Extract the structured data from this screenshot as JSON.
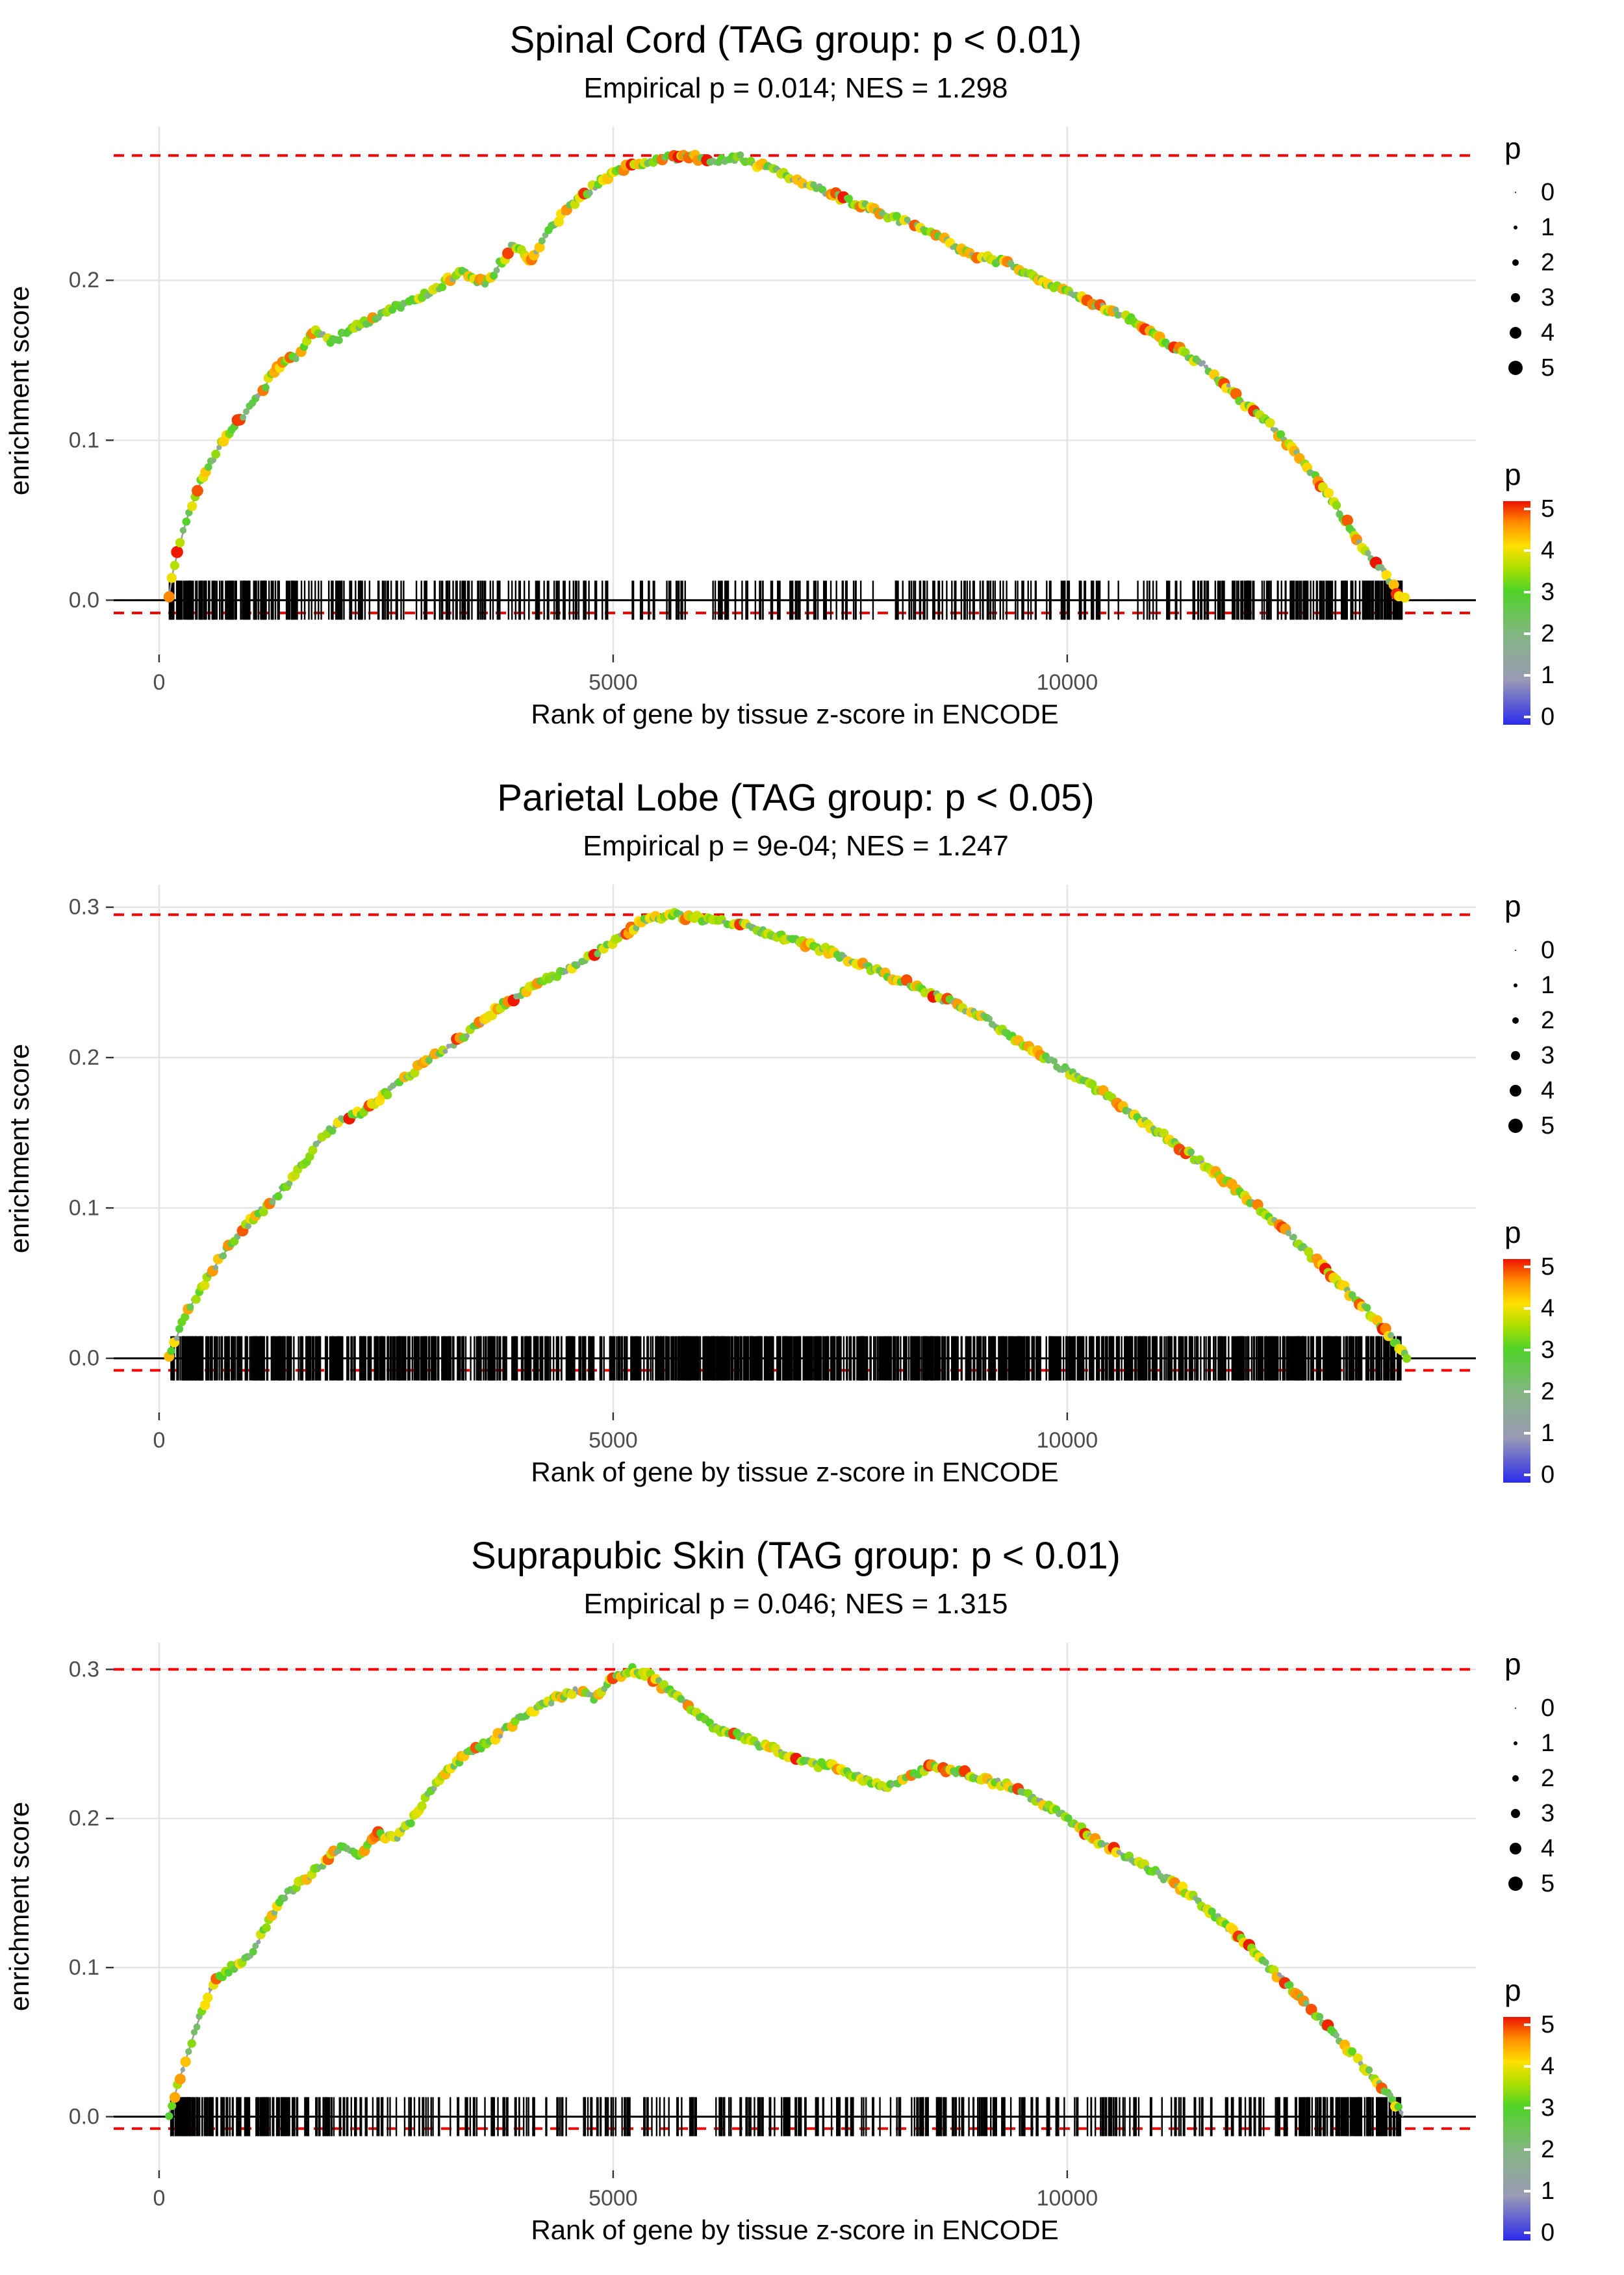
{
  "page": {
    "background": "#ffffff"
  },
  "style": {
    "grid_color": "#e4e4e4",
    "dash_color": "#fb0000",
    "zero_line_color": "#000000",
    "axis_text_color": "#4d4d4d",
    "axis_title_color": "#000000",
    "curve_line_color": "#9b9b9b",
    "rug_color": "#000000"
  },
  "legend": {
    "size_title": "p",
    "size_labels": [
      "0",
      "1",
      "2",
      "3",
      "4",
      "5"
    ],
    "color_title": "p",
    "color_labels": [
      "5",
      "4",
      "3",
      "2",
      "1",
      "0"
    ],
    "color_scale_anchors": [
      [
        0,
        "#2b2bec"
      ],
      [
        1,
        "#9a9ab5"
      ],
      [
        2,
        "#84b583"
      ],
      [
        3,
        "#50d327"
      ],
      [
        3.5,
        "#aadf00"
      ],
      [
        4,
        "#ffe000"
      ],
      [
        4.5,
        "#ff9000"
      ],
      [
        5,
        "#ee1100"
      ]
    ]
  },
  "chart_data": [
    {
      "type": "line",
      "title": "Spinal Cord (TAG group: p < 0.01)",
      "subtitle": "Empirical p = 0.014; NES = 1.298",
      "group_label": "TAG group: p < 0.01",
      "empirical_p": "0.014",
      "nes": "1.298",
      "xlabel": "Rank of gene by tissue z-score in ENCODE",
      "ylabel": "enrichment score",
      "xticks": [
        0,
        5000,
        10000
      ],
      "yticks": [
        0.0,
        0.1,
        0.2
      ],
      "xlim": [
        -500,
        14500
      ],
      "ylim": [
        -0.034,
        0.296
      ],
      "es_max_dash": 0.278,
      "zero_dash": -0.008,
      "zero_line": 0.0,
      "curve": [
        [
          100,
          0
        ],
        [
          160,
          0.02
        ],
        [
          300,
          0.05
        ],
        [
          500,
          0.08
        ],
        [
          700,
          0.1
        ],
        [
          1000,
          0.12
        ],
        [
          1300,
          0.145
        ],
        [
          1500,
          0.152
        ],
        [
          1700,
          0.168
        ],
        [
          1900,
          0.162
        ],
        [
          2100,
          0.168
        ],
        [
          2400,
          0.178
        ],
        [
          2700,
          0.185
        ],
        [
          3000,
          0.192
        ],
        [
          3300,
          0.205
        ],
        [
          3600,
          0.198
        ],
        [
          3900,
          0.222
        ],
        [
          4100,
          0.213
        ],
        [
          4300,
          0.232
        ],
        [
          4600,
          0.25
        ],
        [
          4900,
          0.263
        ],
        [
          5200,
          0.272
        ],
        [
          5500,
          0.276
        ],
        [
          5800,
          0.277
        ],
        [
          6100,
          0.275
        ],
        [
          6400,
          0.277
        ],
        [
          6700,
          0.27
        ],
        [
          7000,
          0.264
        ],
        [
          7300,
          0.256
        ],
        [
          7600,
          0.25
        ],
        [
          7900,
          0.243
        ],
        [
          8200,
          0.237
        ],
        [
          8500,
          0.231
        ],
        [
          8800,
          0.219
        ],
        [
          9100,
          0.214
        ],
        [
          9400,
          0.21
        ],
        [
          9700,
          0.2
        ],
        [
          10000,
          0.194
        ],
        [
          10300,
          0.184
        ],
        [
          10600,
          0.179
        ],
        [
          10900,
          0.168
        ],
        [
          11200,
          0.158
        ],
        [
          11500,
          0.147
        ],
        [
          11800,
          0.131
        ],
        [
          12100,
          0.116
        ],
        [
          12400,
          0.1
        ],
        [
          12700,
          0.08
        ],
        [
          13000,
          0.055
        ],
        [
          13300,
          0.03
        ],
        [
          13500,
          0.016
        ],
        [
          13650,
          0.004
        ],
        [
          13720,
          0
        ]
      ],
      "rug": {
        "count": 520,
        "seed": 42,
        "half_height": 30,
        "clusters": true
      },
      "dots": {
        "step": 30,
        "seed": 911
      }
    },
    {
      "type": "line",
      "title": "Parietal Lobe (TAG group: p < 0.05)",
      "subtitle": "Empirical p = 9e-04; NES = 1.247",
      "group_label": "TAG group: p < 0.05",
      "empirical_p": "9e-04",
      "nes": "1.247",
      "xlabel": "Rank of gene by tissue z-score in ENCODE",
      "ylabel": "enrichment score",
      "xticks": [
        0,
        5000,
        10000
      ],
      "yticks": [
        0.0,
        0.1,
        0.2,
        0.3
      ],
      "xlim": [
        -500,
        14500
      ],
      "ylim": [
        -0.036,
        0.315
      ],
      "es_max_dash": 0.295,
      "zero_dash": -0.008,
      "zero_line": 0.0,
      "curve": [
        [
          100,
          0
        ],
        [
          300,
          0.03
        ],
        [
          600,
          0.06
        ],
        [
          900,
          0.085
        ],
        [
          1200,
          0.102
        ],
        [
          1500,
          0.122
        ],
        [
          1800,
          0.147
        ],
        [
          2000,
          0.158
        ],
        [
          2300,
          0.166
        ],
        [
          2600,
          0.181
        ],
        [
          2900,
          0.196
        ],
        [
          3200,
          0.207
        ],
        [
          3500,
          0.221
        ],
        [
          3800,
          0.236
        ],
        [
          4100,
          0.246
        ],
        [
          4400,
          0.256
        ],
        [
          4700,
          0.266
        ],
        [
          5000,
          0.276
        ],
        [
          5300,
          0.29
        ],
        [
          5600,
          0.295
        ],
        [
          5900,
          0.293
        ],
        [
          6200,
          0.29
        ],
        [
          6500,
          0.287
        ],
        [
          6800,
          0.281
        ],
        [
          7100,
          0.276
        ],
        [
          7400,
          0.27
        ],
        [
          7700,
          0.262
        ],
        [
          8000,
          0.255
        ],
        [
          8300,
          0.248
        ],
        [
          8600,
          0.24
        ],
        [
          8900,
          0.232
        ],
        [
          9200,
          0.222
        ],
        [
          9500,
          0.21
        ],
        [
          9800,
          0.198
        ],
        [
          10100,
          0.188
        ],
        [
          10400,
          0.176
        ],
        [
          10700,
          0.163
        ],
        [
          11000,
          0.151
        ],
        [
          11300,
          0.138
        ],
        [
          11600,
          0.125
        ],
        [
          11900,
          0.11
        ],
        [
          12200,
          0.095
        ],
        [
          12500,
          0.079
        ],
        [
          12800,
          0.062
        ],
        [
          13100,
          0.044
        ],
        [
          13400,
          0.026
        ],
        [
          13650,
          0.008
        ],
        [
          13760,
          0
        ]
      ],
      "rug": {
        "count": 1300,
        "seed": 77,
        "half_height": 34,
        "clusters": false
      },
      "dots": {
        "step": 30,
        "seed": 555
      }
    },
    {
      "type": "line",
      "title": "Suprapubic Skin (TAG group: p < 0.01)",
      "subtitle": "Empirical p = 0.046; NES = 1.315",
      "group_label": "TAG group: p < 0.01",
      "empirical_p": "0.046",
      "nes": "1.315",
      "xlabel": "Rank of gene by tissue z-score in ENCODE",
      "ylabel": "enrichment score",
      "xticks": [
        0,
        5000,
        10000
      ],
      "yticks": [
        0.0,
        0.1,
        0.2,
        0.3
      ],
      "xlim": [
        -500,
        14500
      ],
      "ylim": [
        -0.036,
        0.318
      ],
      "es_max_dash": 0.3,
      "zero_dash": -0.008,
      "zero_line": 0.0,
      "curve": [
        [
          100,
          0
        ],
        [
          250,
          0.03
        ],
        [
          420,
          0.062
        ],
        [
          600,
          0.09
        ],
        [
          800,
          0.1
        ],
        [
          1000,
          0.107
        ],
        [
          1200,
          0.13
        ],
        [
          1400,
          0.149
        ],
        [
          1600,
          0.159
        ],
        [
          1800,
          0.169
        ],
        [
          2000,
          0.181
        ],
        [
          2200,
          0.176
        ],
        [
          2400,
          0.19
        ],
        [
          2600,
          0.186
        ],
        [
          2800,
          0.2
        ],
        [
          3000,
          0.219
        ],
        [
          3200,
          0.234
        ],
        [
          3400,
          0.244
        ],
        [
          3600,
          0.25
        ],
        [
          3800,
          0.259
        ],
        [
          4000,
          0.269
        ],
        [
          4200,
          0.275
        ],
        [
          4400,
          0.281
        ],
        [
          4600,
          0.286
        ],
        [
          4800,
          0.281
        ],
        [
          5000,
          0.294
        ],
        [
          5200,
          0.3
        ],
        [
          5400,
          0.296
        ],
        [
          5600,
          0.286
        ],
        [
          5800,
          0.276
        ],
        [
          6000,
          0.266
        ],
        [
          6200,
          0.258
        ],
        [
          6400,
          0.255
        ],
        [
          6600,
          0.25
        ],
        [
          6800,
          0.246
        ],
        [
          7000,
          0.24
        ],
        [
          7200,
          0.236
        ],
        [
          7400,
          0.236
        ],
        [
          7600,
          0.23
        ],
        [
          7800,
          0.226
        ],
        [
          8000,
          0.221
        ],
        [
          8200,
          0.226
        ],
        [
          8500,
          0.235
        ],
        [
          8800,
          0.231
        ],
        [
          9100,
          0.226
        ],
        [
          9400,
          0.221
        ],
        [
          9700,
          0.211
        ],
        [
          10000,
          0.2
        ],
        [
          10300,
          0.186
        ],
        [
          10600,
          0.176
        ],
        [
          10900,
          0.166
        ],
        [
          11200,
          0.156
        ],
        [
          11500,
          0.141
        ],
        [
          11800,
          0.126
        ],
        [
          12100,
          0.107
        ],
        [
          12400,
          0.09
        ],
        [
          12700,
          0.071
        ],
        [
          13000,
          0.051
        ],
        [
          13300,
          0.031
        ],
        [
          13520,
          0.016
        ],
        [
          13700,
          0
        ]
      ],
      "rug": {
        "count": 560,
        "seed": 101,
        "half_height": 30,
        "clusters": true
      },
      "dots": {
        "step": 30,
        "seed": 333
      }
    }
  ]
}
